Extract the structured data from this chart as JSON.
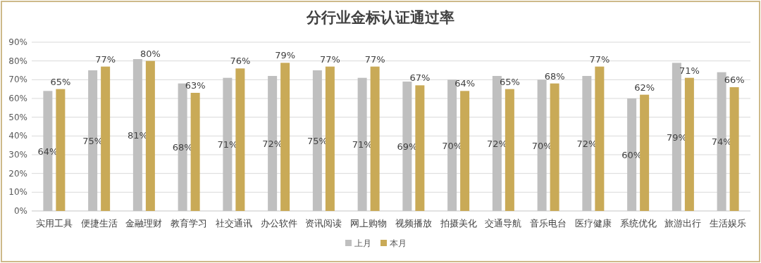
{
  "chart_data": {
    "type": "bar",
    "title": "分行业金标认证通过率",
    "categories": [
      "实用工具",
      "便捷生活",
      "金融理财",
      "教育学习",
      "社交通讯",
      "办公软件",
      "资讯阅读",
      "网上购物",
      "视频播放",
      "拍摄美化",
      "交通导航",
      "音乐电台",
      "医疗健康",
      "系统优化",
      "旅游出行",
      "生活娱乐"
    ],
    "series": [
      {
        "name": "上月",
        "color": "#bfbfbf",
        "values": [
          64,
          75,
          81,
          68,
          71,
          72,
          75,
          71,
          69,
          70,
          72,
          70,
          72,
          60,
          79,
          74
        ],
        "value_labels": [
          "64%",
          "75%",
          "81%",
          "68%",
          "71%",
          "72%",
          "75%",
          "71%",
          "69%",
          "70%",
          "72%",
          "70%",
          "72%",
          "60%",
          "79%",
          "74%"
        ]
      },
      {
        "name": "本月",
        "color": "#c9aa57",
        "values": [
          65,
          77,
          80,
          63,
          76,
          79,
          77,
          77,
          67,
          64,
          65,
          68,
          77,
          62,
          71,
          66
        ],
        "value_labels": [
          "65%",
          "77%",
          "80%",
          "63%",
          "76%",
          "79%",
          "77%",
          "77%",
          "67%",
          "64%",
          "65%",
          "68%",
          "77%",
          "62%",
          "71%",
          "66%"
        ]
      }
    ],
    "ylim": [
      0,
      90
    ],
    "yticks": [
      {
        "value": 0,
        "label": "0%"
      },
      {
        "value": 10,
        "label": "10%"
      },
      {
        "value": 20,
        "label": "20%"
      },
      {
        "value": 30,
        "label": "30%"
      },
      {
        "value": 40,
        "label": "40%"
      },
      {
        "value": 50,
        "label": "50%"
      },
      {
        "value": 60,
        "label": "60%"
      },
      {
        "value": 70,
        "label": "70%"
      },
      {
        "value": 80,
        "label": "80%"
      },
      {
        "value": 90,
        "label": "90%"
      }
    ],
    "grid": "y",
    "legend": "bottom"
  }
}
